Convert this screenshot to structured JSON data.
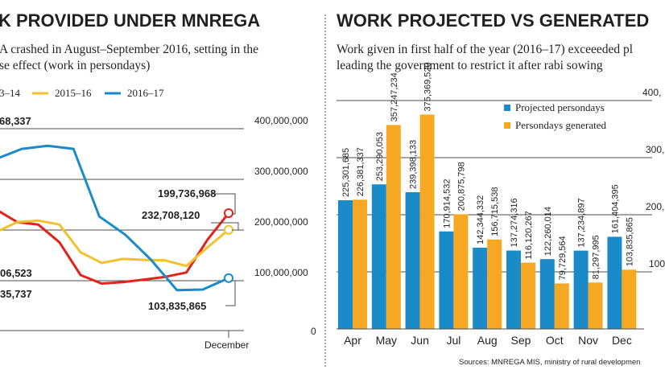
{
  "colors": {
    "red": "#e2231a",
    "yellow": "#f2c22e",
    "blue": "#1b8ac9",
    "orange": "#f7a823",
    "text": "#231f20",
    "grid": "#4d4d4d"
  },
  "chart_data": [
    {
      "type": "line",
      "title": "K PROVIDED UNDER MNREGA",
      "subtitle_line1": "A crashed in August–September 2016, setting in the",
      "subtitle_line2": "se effect (work in persondays)",
      "legend": [
        "3–14",
        "2015–16",
        "2016–17"
      ],
      "y_ticks": [
        "400,000,000",
        "300,000,000",
        "200,000,000",
        "100,000,000",
        "0"
      ],
      "ylim": [
        0,
        400000000
      ],
      "x_label": "December",
      "series": [
        {
          "name": "3–14",
          "color_key": "red",
          "values": [
            240000000,
            215000000,
            210000000,
            175000000,
            110000000,
            93000000,
            96000000,
            101000000,
            106523000,
            115000000,
            180000000,
            232708120
          ]
        },
        {
          "name": "2015–16",
          "color_key": "yellow",
          "values": [
            195000000,
            215000000,
            218000000,
            210000000,
            155000000,
            134000000,
            142000000,
            140000000,
            139000000,
            128000000,
            165000000,
            199736968
          ]
        },
        {
          "name": "2016–17",
          "color_key": "blue",
          "values": [
            340000000,
            360000000,
            366000000,
            360000000,
            226000000,
            190000000,
            140000000,
            80000000,
            81297995,
            103835865
          ]
        }
      ],
      "annotations": [
        "68,337",
        "06,523",
        "35,737",
        "199,736,968",
        "232,708,120",
        "103,835,865"
      ]
    },
    {
      "type": "bar",
      "title": "WORK PROJECTED VS GENERATED",
      "subtitle_line1": "Work given in first half of the year (2016–17) exceeeded pl",
      "subtitle_line2": "leading the government to restrict it after rabi sowing",
      "categories": [
        "Apr",
        "May",
        "Jun",
        "Jul",
        "Aug",
        "Sep",
        "Oct",
        "Nov",
        "Dec"
      ],
      "series": [
        {
          "name": "Projected persondays",
          "color_key": "blue",
          "values": [
            225301685,
            253290053,
            239398133,
            170914532,
            142344332,
            137274316,
            122260014,
            137234897,
            161404395
          ],
          "labels": [
            "225,301,685",
            "253,290,053",
            "239,398,133",
            "170,914,532",
            "142,344,332",
            "137,274,316",
            "122,260,014",
            "137,234,897",
            "161,404,395"
          ]
        },
        {
          "name": "Persondays generated",
          "color_key": "orange",
          "values": [
            226381337,
            357247234,
            375369520,
            200875798,
            156715538,
            116120267,
            79729564,
            81297995,
            103835865
          ],
          "labels": [
            "226,381,337",
            "357,247,234",
            "375,369,520",
            "200,875,798",
            "156,715,538",
            "116,120,267",
            "79,729,564",
            "81,297,995",
            "103,835,865"
          ]
        }
      ],
      "y_ticks": [
        "400,",
        "300,",
        "200,",
        "100,"
      ],
      "ylim": [
        0,
        400000000
      ],
      "source": "Sources: MNREGA MIS, ministry of rural developmen"
    }
  ]
}
